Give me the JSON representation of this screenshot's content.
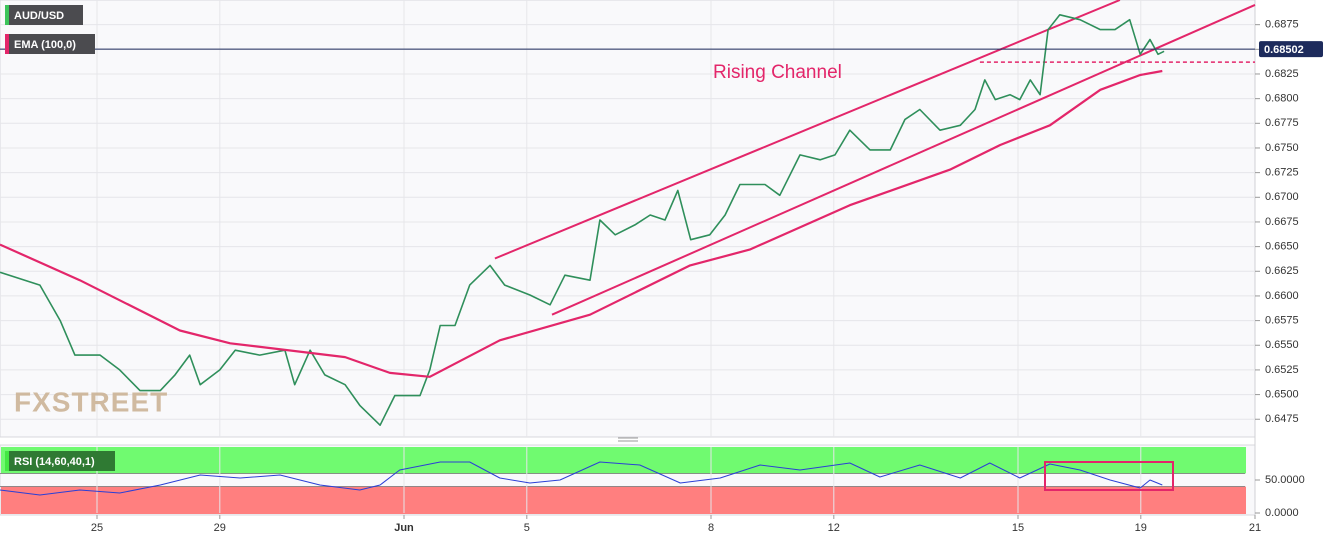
{
  "chart_data": [
    {
      "type": "line",
      "watermark": "FXSTREET",
      "annotation": "Rising Channel",
      "xlim": [
        -1.58,
        18.86
      ],
      "ylim": [
        0.6457,
        0.69
      ],
      "yticks": [
        0.6475,
        {
          "value": 0.65,
          "label": "0.6500"
        },
        0.6525,
        {
          "value": 0.655,
          "label": "0.6550"
        },
        0.6575,
        {
          "value": 0.66,
          "label": "0.6600"
        },
        0.6625,
        {
          "value": 0.665,
          "label": "0.6650"
        },
        0.6675,
        {
          "value": 0.67,
          "label": "0.6700"
        },
        0.6725,
        {
          "value": 0.675,
          "label": "0.6750"
        },
        0.6775,
        {
          "value": 0.68,
          "label": "0.6800"
        },
        0.6825,
        {
          "value": 0.685,
          "label": "0.6850"
        },
        0.6875
      ],
      "grid": true,
      "last_price": 0.68502,
      "series": [
        {
          "name": "AUD/USD",
          "color": "#2f8f5b",
          "legend_color": "#3cc45a",
          "x": [
            -1.58,
            -0.93,
            -0.6,
            -0.36,
            0.05,
            0.37,
            0.7,
            1.03,
            1.27,
            1.51,
            1.68,
            2.0,
            2.25,
            2.65,
            3.06,
            3.22,
            3.47,
            3.71,
            4.04,
            4.28,
            4.61,
            4.85,
            5.26,
            5.42,
            5.59,
            5.83,
            6.07,
            6.4,
            6.64,
            7.05,
            7.38,
            7.62,
            8.03,
            8.19,
            8.44,
            8.76,
            9.01,
            9.25,
            9.46,
            9.67,
            9.98,
            10.23,
            10.47,
            10.88,
            11.12,
            11.45,
            11.78,
            12.02,
            12.26,
            12.59,
            12.92,
            13.16,
            13.4,
            13.73,
            14.06,
            14.3,
            14.46,
            14.63,
            14.87,
            15.03,
            15.2,
            15.36,
            15.49,
            15.68,
            16.01,
            16.34,
            16.58,
            16.82,
            16.99,
            17.15,
            17.28,
            17.38
          ],
          "values": [
            0.6624,
            0.6611,
            0.6575,
            0.654,
            0.654,
            0.6525,
            0.6504,
            0.6504,
            0.652,
            0.654,
            0.651,
            0.6525,
            0.6545,
            0.654,
            0.6545,
            0.651,
            0.6545,
            0.652,
            0.651,
            0.6489,
            0.6469,
            0.6499,
            0.6499,
            0.6525,
            0.657,
            0.657,
            0.6611,
            0.6631,
            0.6611,
            0.6601,
            0.6591,
            0.6621,
            0.6616,
            0.6677,
            0.6662,
            0.6672,
            0.6682,
            0.6677,
            0.6707,
            0.6657,
            0.6662,
            0.6682,
            0.6713,
            0.6713,
            0.6702,
            0.6743,
            0.6738,
            0.6743,
            0.6768,
            0.6748,
            0.6748,
            0.6779,
            0.6789,
            0.6768,
            0.6773,
            0.6789,
            0.6819,
            0.6799,
            0.6804,
            0.6799,
            0.6819,
            0.6804,
            0.687,
            0.6885,
            0.688,
            0.687,
            0.687,
            0.688,
            0.6845,
            0.686,
            0.6845,
            0.6848
          ]
        },
        {
          "name": "EMA (100,0)",
          "color": "#e3266a",
          "legend_color": "#e3266a",
          "x": [
            -1.58,
            -0.28,
            1.35,
            2.17,
            4.04,
            4.77,
            5.42,
            6.56,
            8.03,
            9.66,
            10.63,
            12.26,
            13.89,
            14.71,
            15.52,
            16.34,
            16.99,
            17.35
          ],
          "values": [
            0.6652,
            0.6616,
            0.6565,
            0.6552,
            0.6538,
            0.6522,
            0.6518,
            0.6555,
            0.6581,
            0.6631,
            0.6647,
            0.6692,
            0.6728,
            0.6753,
            0.6773,
            0.6809,
            0.6824,
            0.6828
          ]
        }
      ],
      "trendlines": [
        {
          "color": "#e3266a",
          "x": [
            6.48,
            16.66
          ],
          "values": [
            0.6638,
            0.69
          ]
        },
        {
          "color": "#e3266a",
          "x": [
            7.41,
            18.86
          ],
          "values": [
            0.6581,
            0.6895
          ]
        }
      ],
      "level": {
        "color": "#e3266a",
        "x": [
          14.38,
          18.86
        ],
        "value": 0.6837
      }
    },
    {
      "type": "line",
      "xlim": [
        -1.58,
        18.86
      ],
      "ylim": [
        0,
        100
      ],
      "upper": 60,
      "lower": 40,
      "upper_color": "#70fa70",
      "lower_color": "#ff7f7f",
      "yticks": [
        {
          "value": 50,
          "label": "50.0000"
        },
        {
          "value": 0,
          "label": "0.0000"
        }
      ],
      "xticks": [
        {
          "value": 0,
          "label": "25"
        },
        {
          "value": 2,
          "label": "29"
        },
        {
          "value": 5,
          "label": "Jun"
        },
        {
          "value": 7,
          "label": "5"
        },
        {
          "value": 10,
          "label": "8"
        },
        {
          "value": 12,
          "label": "12"
        },
        {
          "value": 15,
          "label": "15"
        },
        {
          "value": 17,
          "label": "19"
        },
        {
          "value": 18.86,
          "label": "21"
        }
      ],
      "series": [
        {
          "name": "RSI (14,60,40,1)",
          "color": "#2b3fd6",
          "x": [
            -1.58,
            -0.93,
            -0.28,
            0.37,
            1.03,
            1.68,
            2.33,
            2.98,
            3.63,
            4.28,
            4.61,
            4.93,
            5.59,
            6.07,
            6.56,
            7.05,
            7.54,
            8.19,
            8.84,
            9.5,
            10.15,
            10.8,
            11.45,
            12.26,
            12.75,
            13.4,
            14.06,
            14.54,
            15.03,
            15.52,
            16.01,
            16.5,
            16.99,
            17.15,
            17.35
          ],
          "values": [
            34.8,
            27.3,
            34.8,
            30.3,
            42.4,
            57.6,
            53,
            57.6,
            42.4,
            34.8,
            42.4,
            65.2,
            77.3,
            77.3,
            53,
            45.5,
            50,
            77.3,
            72.7,
            45.5,
            53,
            72.7,
            65.2,
            75.8,
            54.5,
            72.7,
            53,
            75.8,
            53,
            74.2,
            65.2,
            50,
            37.9,
            50,
            42.4
          ]
        }
      ]
    }
  ]
}
